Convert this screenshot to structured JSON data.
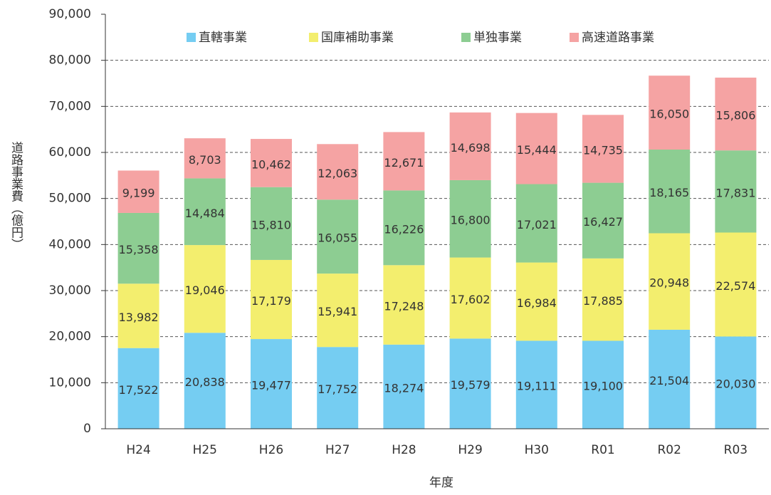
{
  "chart_data": {
    "type": "stacked_bar",
    "xlabel": "年度",
    "ylabel": "道路事業費（億円）",
    "categories": [
      "H24",
      "H25",
      "H26",
      "H27",
      "H28",
      "H29",
      "H30",
      "R01",
      "R02",
      "R03"
    ],
    "series": [
      {
        "name": "直轄事業",
        "color": "#75cdf2",
        "values": [
          17522,
          20838,
          19477,
          17752,
          18274,
          19579,
          19111,
          19100,
          21504,
          20030
        ],
        "value_labels": [
          "17,522",
          "20,838",
          "19,477",
          "17,752",
          "18,274",
          "19,579",
          "19,111",
          "19,100",
          "21,504",
          "20,030"
        ]
      },
      {
        "name": "国庫補助事業",
        "color": "#f3ee6e",
        "values": [
          13982,
          19046,
          17179,
          15941,
          17248,
          17602,
          16984,
          17885,
          20948,
          22574
        ],
        "value_labels": [
          "13,982",
          "19,046",
          "17,179",
          "15,941",
          "17,248",
          "17,602",
          "16,984",
          "17,885",
          "20,948",
          "22,574"
        ]
      },
      {
        "name": "単独事業",
        "color": "#8dcd92",
        "values": [
          15358,
          14484,
          15810,
          16055,
          16226,
          16800,
          17021,
          16427,
          18165,
          17831
        ],
        "value_labels": [
          "15,358",
          "14,484",
          "15,810",
          "16,055",
          "16,226",
          "16,800",
          "17,021",
          "16,427",
          "18,165",
          "17,831"
        ]
      },
      {
        "name": "高速道路事業",
        "color": "#f5a3a3",
        "values": [
          9199,
          8703,
          10462,
          12063,
          12671,
          14698,
          15444,
          14735,
          16050,
          15806
        ],
        "value_labels": [
          "9,199",
          "8,703",
          "10,462",
          "12,063",
          "12,671",
          "14,698",
          "15,444",
          "14,735",
          "16,050",
          "15,806"
        ]
      }
    ],
    "ylim": [
      0,
      90000
    ],
    "yticks": [
      0,
      {
        "value": 10000,
        "label": "10,000"
      },
      {
        "value": 20000,
        "label": "20,000"
      },
      {
        "value": 30000,
        "label": "30,000"
      },
      {
        "value": 40000,
        "label": "40,000"
      },
      {
        "value": 50000,
        "label": "50,000"
      },
      {
        "value": 60000,
        "label": "60,000"
      },
      {
        "value": 70000,
        "label": "70,000"
      },
      {
        "value": 80000,
        "label": "80,000"
      },
      {
        "value": 90000,
        "label": "90,000"
      }
    ],
    "grid": true,
    "legend": "top"
  }
}
